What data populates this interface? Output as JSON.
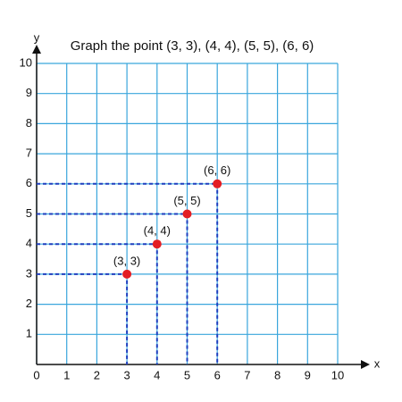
{
  "chart_data": {
    "type": "scatter",
    "title": "Graph the point (3, 3), (4, 4), (5, 5), (6, 6)",
    "x_label": "x",
    "y_label": "y",
    "x": [
      3,
      4,
      5,
      6
    ],
    "values": [
      3,
      4,
      5,
      6
    ],
    "value_labels": [
      "(3, 3)",
      "(4, 4)",
      "(5, 5)",
      "(6, 6)"
    ],
    "color": "#e31e24",
    "guide_color": "#1f3fbf",
    "grid_color": "#3aa6dc",
    "xlim": [
      0,
      10
    ],
    "ylim": [
      0,
      10
    ],
    "xticks": [
      0,
      1,
      2,
      3,
      4,
      5,
      6,
      7,
      8,
      9,
      10
    ],
    "yticks": [
      1,
      2,
      3,
      4,
      5,
      6,
      7,
      8,
      9,
      10
    ],
    "grid": true
  }
}
